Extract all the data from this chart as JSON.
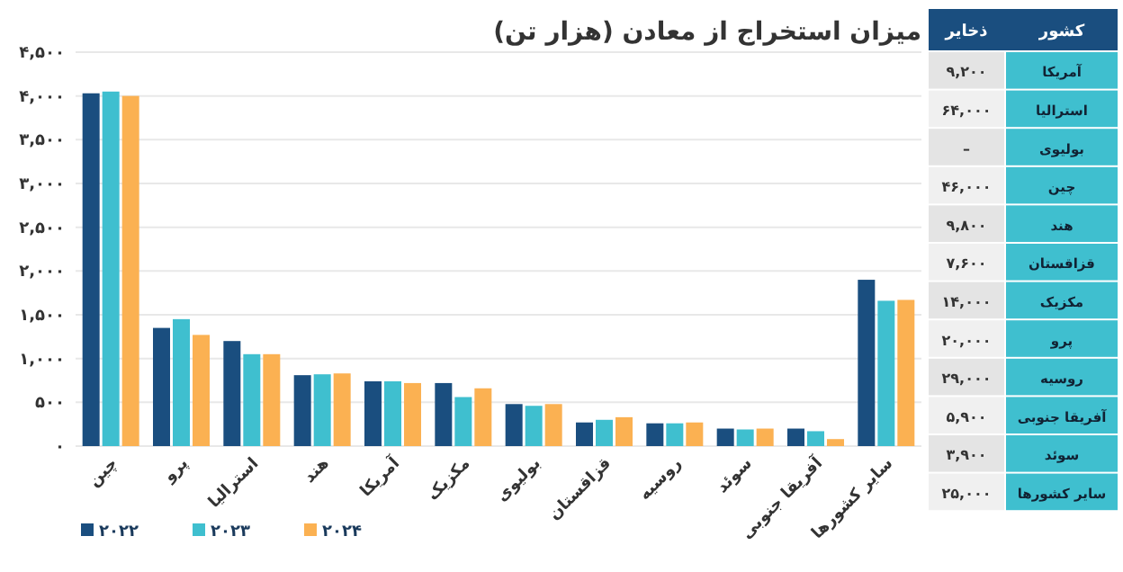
{
  "chart_data": [
    {
      "type": "bar",
      "title": "میزان استخراج از معادن (هزار تن)",
      "categories": [
        "چین",
        "پرو",
        "استرالیا",
        "هند",
        "آمریکا",
        "مکزیک",
        "بولیوی",
        "قزاقستان",
        "روسیه",
        "سوئد",
        "آفریقا جنوبی",
        "سایر کشورها"
      ],
      "series": [
        {
          "name": "۲۰۲۲",
          "color": "#1a4e7f",
          "values": [
            4030,
            1350,
            1200,
            810,
            740,
            720,
            480,
            270,
            260,
            200,
            200,
            1900
          ]
        },
        {
          "name": "۲۰۲۳",
          "color": "#3fbfcf",
          "values": [
            4050,
            1450,
            1050,
            820,
            740,
            560,
            460,
            300,
            260,
            190,
            170,
            1660
          ]
        },
        {
          "name": "۲۰۲۴",
          "color": "#fbb152",
          "values": [
            4000,
            1270,
            1050,
            830,
            720,
            660,
            480,
            330,
            270,
            200,
            80,
            1670
          ]
        }
      ],
      "ylim": [
        0,
        4500
      ],
      "yticks": [
        {
          "value": 0,
          "label": "۰"
        },
        {
          "value": 500,
          "label": "۵۰۰"
        },
        {
          "value": 1000,
          "label": "۱,۰۰۰"
        },
        {
          "value": 1500,
          "label": "۱,۵۰۰"
        },
        {
          "value": 2000,
          "label": "۲,۰۰۰"
        },
        {
          "value": 2500,
          "label": "۲,۵۰۰"
        },
        {
          "value": 3000,
          "label": "۳,۰۰۰"
        },
        {
          "value": 3500,
          "label": "۳,۵۰۰"
        },
        {
          "value": 4000,
          "label": "۴,۰۰۰"
        },
        {
          "value": 4500,
          "label": "۴,۵۰۰"
        }
      ],
      "grid": "y",
      "legend": "bottom"
    },
    {
      "type": "other",
      "ylabel": "کشور",
      "categories": [
        "ذخایر"
      ],
      "y_categories": [
        "آمریکا",
        "استرالیا",
        "بولیوی",
        "چین",
        "هند",
        "قزاقستان",
        "مکزیک",
        "پرو",
        "روسیه",
        "آفریقا جنوبی",
        "سوئد",
        "سایر کشورها"
      ],
      "cell_labels": [
        [
          "۹,۲۰۰"
        ],
        [
          "۶۴,۰۰۰"
        ],
        [
          "–"
        ],
        [
          "۴۶,۰۰۰"
        ],
        [
          "۹,۸۰۰"
        ],
        [
          "۷,۶۰۰"
        ],
        [
          "۱۴,۰۰۰"
        ],
        [
          "۲۰,۰۰۰"
        ],
        [
          "۲۹,۰۰۰"
        ],
        [
          "۵,۹۰۰"
        ],
        [
          "۳,۹۰۰"
        ],
        [
          "۲۵,۰۰۰"
        ]
      ]
    }
  ]
}
